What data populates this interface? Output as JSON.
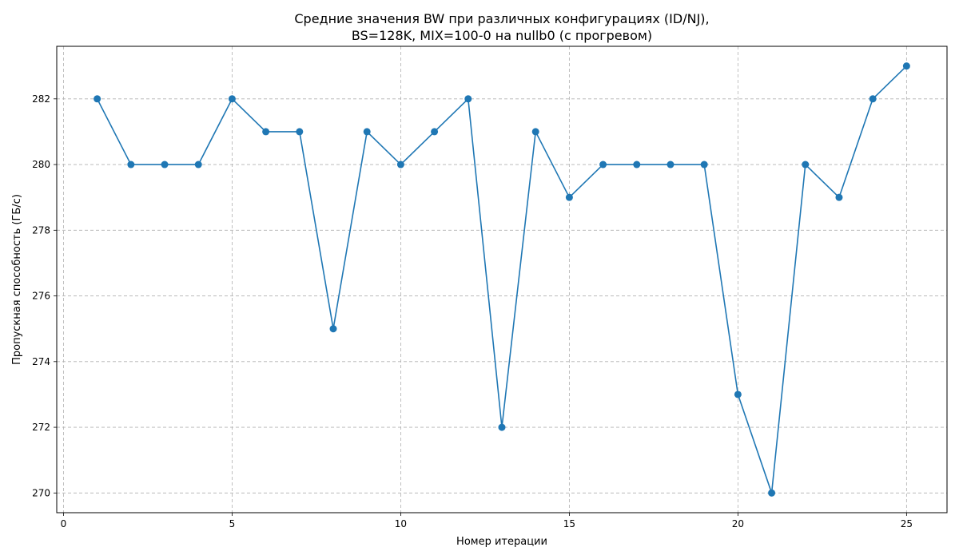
{
  "chart_data": {
    "type": "line",
    "title_line1": "Средние значения BW при различных конфигурациях (ID/NJ),",
    "title_line2": "BS=128K, MIX=100-0 на nullb0 (с прогревом)",
    "xlabel": "Номер итерации",
    "ylabel": "Пропускная способность (ГБ/с)",
    "xlim": [
      -0.2,
      26.2
    ],
    "ylim": [
      269.4,
      283.6
    ],
    "xticks": [
      0,
      5,
      10,
      15,
      20,
      25
    ],
    "yticks": [
      270,
      272,
      274,
      276,
      278,
      280,
      282
    ],
    "grid": true,
    "series_color": "#1f77b4",
    "x": [
      1,
      2,
      3,
      4,
      5,
      6,
      7,
      8,
      9,
      10,
      11,
      12,
      13,
      14,
      15,
      16,
      17,
      18,
      19,
      20,
      21,
      22,
      23,
      24,
      25
    ],
    "y": [
      282,
      280,
      280,
      280,
      282,
      281,
      281,
      275,
      281,
      280,
      281,
      282,
      272,
      281,
      279,
      280,
      280,
      280,
      280,
      273,
      270,
      280,
      279,
      282,
      283
    ]
  }
}
